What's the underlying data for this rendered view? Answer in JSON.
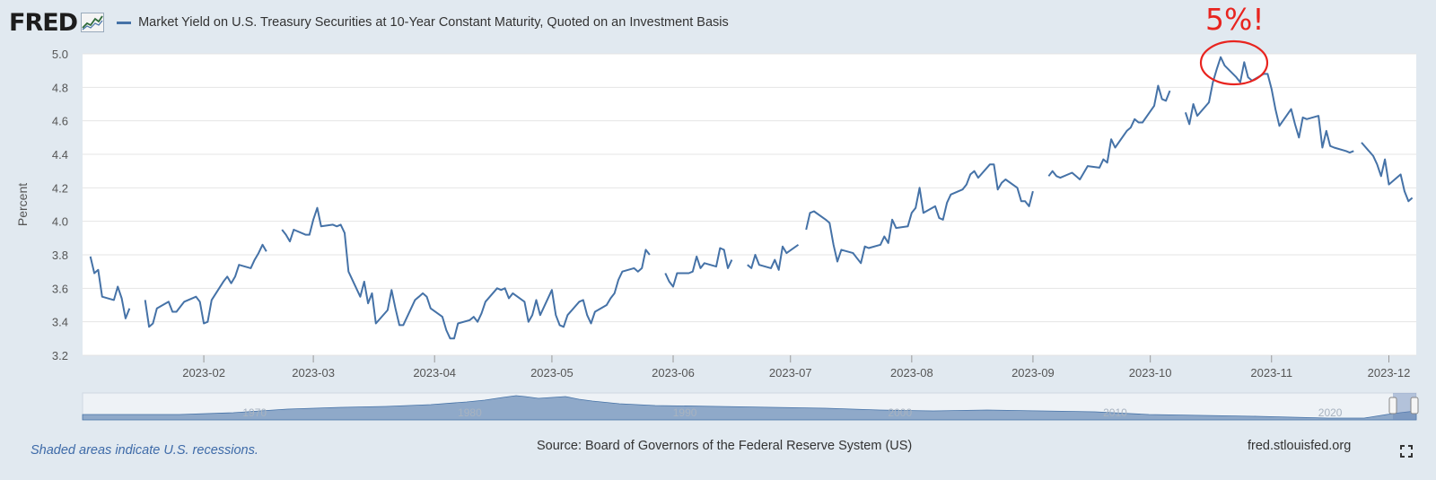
{
  "header": {
    "logo": "FRED",
    "logo_icon": "chart-line-icon",
    "title": "Market Yield on U.S. Treasury Securities at 10-Year Constant Maturity, Quoted on an Investment Basis"
  },
  "annotation": {
    "text": "5%!",
    "color": "#e8241f"
  },
  "footer": {
    "recession_note": "Shaded areas indicate U.S. recessions.",
    "source": "Source: Board of Governors of the Federal Reserve System (US)",
    "site": "fred.stlouisfed.org",
    "fullscreen_icon": "fullscreen-icon"
  },
  "colors": {
    "background": "#e1e9f0",
    "plot_bg": "#ffffff",
    "line": "#4572a7",
    "accent": "#e8241f"
  },
  "navigator": {
    "labels": [
      "1970",
      "1980",
      "1990",
      "2000",
      "2010",
      "2020"
    ]
  },
  "chart_data": {
    "type": "line",
    "title": "Market Yield on U.S. Treasury Securities at 10-Year Constant Maturity, Quoted on an Investment Basis",
    "xlabel": "",
    "ylabel": "Percent",
    "ylim": [
      3.2,
      5.0
    ],
    "yticks": [
      "3.2",
      "3.4",
      "3.6",
      "3.8",
      "4.0",
      "4.2",
      "4.4",
      "4.6",
      "4.8",
      "5.0"
    ],
    "xticks": [
      "2023-02",
      "2023-03",
      "2023-04",
      "2023-05",
      "2023-06",
      "2023-07",
      "2023-08",
      "2023-09",
      "2023-10",
      "2023-11",
      "2023-12"
    ],
    "xlim": [
      "2023-01-01",
      "2023-12-08"
    ],
    "grid": true,
    "legend": "top-left",
    "series": [
      {
        "name": "Market Yield on U.S. Treasury Securities at 10-Year Constant Maturity, Quoted on an Investment Basis",
        "color": "#4572a7",
        "segments": [
          [
            [
              "2023-01-03",
              3.79
            ],
            [
              "2023-01-04",
              3.69
            ],
            [
              "2023-01-05",
              3.71
            ],
            [
              "2023-01-06",
              3.55
            ],
            [
              "2023-01-09",
              3.53
            ],
            [
              "2023-01-10",
              3.61
            ],
            [
              "2023-01-11",
              3.54
            ],
            [
              "2023-01-12",
              3.42
            ],
            [
              "2023-01-13",
              3.48
            ]
          ],
          [
            [
              "2023-01-17",
              3.53
            ],
            [
              "2023-01-18",
              3.37
            ],
            [
              "2023-01-19",
              3.39
            ],
            [
              "2023-01-20",
              3.48
            ],
            [
              "2023-01-23",
              3.52
            ],
            [
              "2023-01-24",
              3.46
            ],
            [
              "2023-01-25",
              3.46
            ],
            [
              "2023-01-26",
              3.49
            ],
            [
              "2023-01-27",
              3.52
            ],
            [
              "2023-01-30",
              3.55
            ],
            [
              "2023-01-31",
              3.52
            ],
            [
              "2023-02-01",
              3.39
            ],
            [
              "2023-02-02",
              3.4
            ],
            [
              "2023-02-03",
              3.53
            ],
            [
              "2023-02-06",
              3.64
            ],
            [
              "2023-02-07",
              3.67
            ],
            [
              "2023-02-08",
              3.63
            ],
            [
              "2023-02-09",
              3.67
            ],
            [
              "2023-02-10",
              3.74
            ],
            [
              "2023-02-13",
              3.72
            ],
            [
              "2023-02-14",
              3.77
            ],
            [
              "2023-02-15",
              3.81
            ],
            [
              "2023-02-16",
              3.86
            ],
            [
              "2023-02-17",
              3.82
            ]
          ],
          [
            [
              "2023-02-21",
              3.95
            ],
            [
              "2023-02-22",
              3.92
            ],
            [
              "2023-02-23",
              3.88
            ],
            [
              "2023-02-24",
              3.95
            ],
            [
              "2023-02-27",
              3.92
            ],
            [
              "2023-02-28",
              3.92
            ],
            [
              "2023-03-01",
              4.01
            ],
            [
              "2023-03-02",
              4.08
            ],
            [
              "2023-03-03",
              3.97
            ],
            [
              "2023-03-06",
              3.98
            ],
            [
              "2023-03-07",
              3.97
            ],
            [
              "2023-03-08",
              3.98
            ],
            [
              "2023-03-09",
              3.93
            ],
            [
              "2023-03-10",
              3.7
            ],
            [
              "2023-03-13",
              3.55
            ],
            [
              "2023-03-14",
              3.64
            ],
            [
              "2023-03-15",
              3.51
            ],
            [
              "2023-03-16",
              3.57
            ],
            [
              "2023-03-17",
              3.39
            ],
            [
              "2023-03-20",
              3.47
            ],
            [
              "2023-03-21",
              3.59
            ],
            [
              "2023-03-22",
              3.48
            ],
            [
              "2023-03-23",
              3.38
            ],
            [
              "2023-03-24",
              3.38
            ],
            [
              "2023-03-27",
              3.53
            ],
            [
              "2023-03-28",
              3.55
            ],
            [
              "2023-03-29",
              3.57
            ],
            [
              "2023-03-30",
              3.55
            ],
            [
              "2023-03-31",
              3.48
            ],
            [
              "2023-04-03",
              3.43
            ],
            [
              "2023-04-04",
              3.35
            ],
            [
              "2023-04-05",
              3.3
            ],
            [
              "2023-04-06",
              3.3
            ],
            [
              "2023-04-07",
              3.39
            ],
            [
              "2023-04-10",
              3.41
            ],
            [
              "2023-04-11",
              3.43
            ],
            [
              "2023-04-12",
              3.4
            ],
            [
              "2023-04-13",
              3.45
            ],
            [
              "2023-04-14",
              3.52
            ],
            [
              "2023-04-17",
              3.6
            ],
            [
              "2023-04-18",
              3.59
            ],
            [
              "2023-04-19",
              3.6
            ],
            [
              "2023-04-20",
              3.54
            ],
            [
              "2023-04-21",
              3.57
            ],
            [
              "2023-04-24",
              3.52
            ],
            [
              "2023-04-25",
              3.4
            ],
            [
              "2023-04-26",
              3.44
            ],
            [
              "2023-04-27",
              3.53
            ],
            [
              "2023-04-28",
              3.44
            ],
            [
              "2023-05-01",
              3.59
            ],
            [
              "2023-05-02",
              3.44
            ],
            [
              "2023-05-03",
              3.38
            ],
            [
              "2023-05-04",
              3.37
            ],
            [
              "2023-05-05",
              3.44
            ],
            [
              "2023-05-08",
              3.52
            ],
            [
              "2023-05-09",
              3.53
            ],
            [
              "2023-05-10",
              3.44
            ],
            [
              "2023-05-11",
              3.39
            ],
            [
              "2023-05-12",
              3.46
            ],
            [
              "2023-05-15",
              3.5
            ],
            [
              "2023-05-16",
              3.54
            ],
            [
              "2023-05-17",
              3.57
            ],
            [
              "2023-05-18",
              3.65
            ],
            [
              "2023-05-19",
              3.7
            ],
            [
              "2023-05-22",
              3.72
            ],
            [
              "2023-05-23",
              3.7
            ],
            [
              "2023-05-24",
              3.72
            ],
            [
              "2023-05-25",
              3.83
            ],
            [
              "2023-05-26",
              3.8
            ]
          ],
          [
            [
              "2023-05-30",
              3.69
            ],
            [
              "2023-05-31",
              3.64
            ],
            [
              "2023-06-01",
              3.61
            ],
            [
              "2023-06-02",
              3.69
            ],
            [
              "2023-06-05",
              3.69
            ],
            [
              "2023-06-06",
              3.7
            ],
            [
              "2023-06-07",
              3.79
            ],
            [
              "2023-06-08",
              3.72
            ],
            [
              "2023-06-09",
              3.75
            ],
            [
              "2023-06-12",
              3.73
            ],
            [
              "2023-06-13",
              3.84
            ],
            [
              "2023-06-14",
              3.83
            ],
            [
              "2023-06-15",
              3.72
            ],
            [
              "2023-06-16",
              3.77
            ]
          ],
          [
            [
              "2023-06-20",
              3.74
            ],
            [
              "2023-06-21",
              3.72
            ],
            [
              "2023-06-22",
              3.8
            ],
            [
              "2023-06-23",
              3.74
            ],
            [
              "2023-06-26",
              3.72
            ],
            [
              "2023-06-27",
              3.77
            ],
            [
              "2023-06-28",
              3.71
            ],
            [
              "2023-06-29",
              3.85
            ],
            [
              "2023-06-30",
              3.81
            ],
            [
              "2023-07-03",
              3.86
            ]
          ],
          [
            [
              "2023-07-05",
              3.95
            ],
            [
              "2023-07-06",
              4.05
            ],
            [
              "2023-07-07",
              4.06
            ],
            [
              "2023-07-10",
              4.01
            ],
            [
              "2023-07-11",
              3.99
            ],
            [
              "2023-07-12",
              3.86
            ],
            [
              "2023-07-13",
              3.76
            ],
            [
              "2023-07-14",
              3.83
            ],
            [
              "2023-07-17",
              3.81
            ],
            [
              "2023-07-18",
              3.78
            ],
            [
              "2023-07-19",
              3.75
            ],
            [
              "2023-07-20",
              3.85
            ],
            [
              "2023-07-21",
              3.84
            ],
            [
              "2023-07-24",
              3.86
            ],
            [
              "2023-07-25",
              3.91
            ],
            [
              "2023-07-26",
              3.87
            ],
            [
              "2023-07-27",
              4.01
            ],
            [
              "2023-07-28",
              3.96
            ],
            [
              "2023-07-31",
              3.97
            ],
            [
              "2023-08-01",
              4.05
            ],
            [
              "2023-08-02",
              4.08
            ],
            [
              "2023-08-03",
              4.2
            ],
            [
              "2023-08-04",
              4.05
            ],
            [
              "2023-08-07",
              4.09
            ],
            [
              "2023-08-08",
              4.02
            ],
            [
              "2023-08-09",
              4.01
            ],
            [
              "2023-08-10",
              4.11
            ],
            [
              "2023-08-11",
              4.16
            ],
            [
              "2023-08-14",
              4.19
            ],
            [
              "2023-08-15",
              4.22
            ],
            [
              "2023-08-16",
              4.28
            ],
            [
              "2023-08-17",
              4.3
            ],
            [
              "2023-08-18",
              4.26
            ],
            [
              "2023-08-21",
              4.34
            ],
            [
              "2023-08-22",
              4.34
            ],
            [
              "2023-08-23",
              4.19
            ],
            [
              "2023-08-24",
              4.23
            ],
            [
              "2023-08-25",
              4.25
            ],
            [
              "2023-08-28",
              4.2
            ],
            [
              "2023-08-29",
              4.12
            ],
            [
              "2023-08-30",
              4.12
            ],
            [
              "2023-08-31",
              4.09
            ],
            [
              "2023-09-01",
              4.18
            ]
          ],
          [
            [
              "2023-09-05",
              4.27
            ],
            [
              "2023-09-06",
              4.3
            ],
            [
              "2023-09-07",
              4.27
            ],
            [
              "2023-09-08",
              4.26
            ],
            [
              "2023-09-11",
              4.29
            ],
            [
              "2023-09-12",
              4.27
            ],
            [
              "2023-09-13",
              4.25
            ],
            [
              "2023-09-14",
              4.29
            ],
            [
              "2023-09-15",
              4.33
            ],
            [
              "2023-09-18",
              4.32
            ],
            [
              "2023-09-19",
              4.37
            ],
            [
              "2023-09-20",
              4.35
            ],
            [
              "2023-09-21",
              4.49
            ],
            [
              "2023-09-22",
              4.44
            ],
            [
              "2023-09-25",
              4.54
            ],
            [
              "2023-09-26",
              4.56
            ],
            [
              "2023-09-27",
              4.61
            ],
            [
              "2023-09-28",
              4.59
            ],
            [
              "2023-09-29",
              4.59
            ],
            [
              "2023-10-02",
              4.69
            ],
            [
              "2023-10-03",
              4.81
            ],
            [
              "2023-10-04",
              4.73
            ],
            [
              "2023-10-05",
              4.72
            ],
            [
              "2023-10-06",
              4.78
            ]
          ],
          [
            [
              "2023-10-10",
              4.65
            ],
            [
              "2023-10-11",
              4.58
            ],
            [
              "2023-10-12",
              4.7
            ],
            [
              "2023-10-13",
              4.63
            ],
            [
              "2023-10-16",
              4.71
            ],
            [
              "2023-10-17",
              4.83
            ],
            [
              "2023-10-18",
              4.91
            ],
            [
              "2023-10-19",
              4.98
            ],
            [
              "2023-10-20",
              4.93
            ],
            [
              "2023-10-23",
              4.86
            ],
            [
              "2023-10-24",
              4.83
            ],
            [
              "2023-10-25",
              4.95
            ],
            [
              "2023-10-26",
              4.86
            ],
            [
              "2023-10-27",
              4.84
            ],
            [
              "2023-10-30",
              4.88
            ],
            [
              "2023-10-31",
              4.88
            ],
            [
              "2023-11-01",
              4.79
            ],
            [
              "2023-11-02",
              4.67
            ],
            [
              "2023-11-03",
              4.57
            ],
            [
              "2023-11-06",
              4.67
            ],
            [
              "2023-11-07",
              4.58
            ],
            [
              "2023-11-08",
              4.5
            ],
            [
              "2023-11-09",
              4.62
            ],
            [
              "2023-11-10",
              4.61
            ],
            [
              "2023-11-13",
              4.63
            ],
            [
              "2023-11-14",
              4.44
            ],
            [
              "2023-11-15",
              4.54
            ],
            [
              "2023-11-16",
              4.45
            ],
            [
              "2023-11-17",
              4.44
            ],
            [
              "2023-11-20",
              4.42
            ],
            [
              "2023-11-21",
              4.41
            ],
            [
              "2023-11-22",
              4.42
            ]
          ],
          [
            [
              "2023-11-24",
              4.47
            ],
            [
              "2023-11-27",
              4.39
            ],
            [
              "2023-11-28",
              4.34
            ],
            [
              "2023-11-29",
              4.27
            ],
            [
              "2023-11-30",
              4.37
            ],
            [
              "2023-12-01",
              4.22
            ],
            [
              "2023-12-04",
              4.28
            ],
            [
              "2023-12-05",
              4.18
            ],
            [
              "2023-12-06",
              4.12
            ],
            [
              "2023-12-07",
              4.14
            ]
          ]
        ]
      }
    ]
  }
}
